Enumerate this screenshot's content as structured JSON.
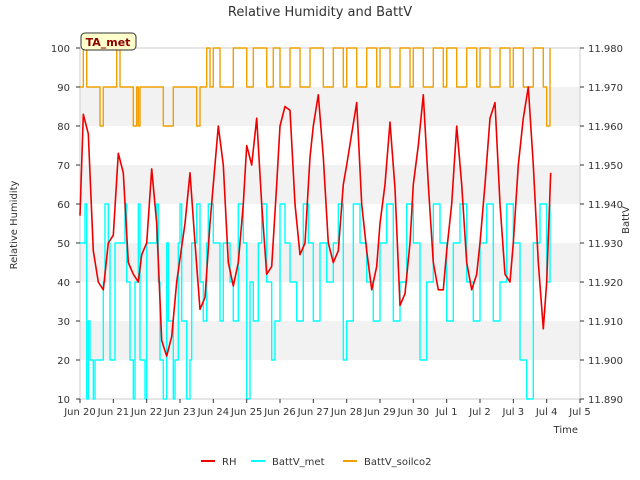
{
  "chart_data": {
    "type": "line",
    "title": "Relative Humidity and BattV",
    "xlabel": "Time",
    "ylabel": "Relative Humidity",
    "y2label": "BattV",
    "badge": "TA_met",
    "xlim": [
      0,
      15
    ],
    "ylim": [
      10,
      100
    ],
    "y2lim": [
      11.89,
      11.98
    ],
    "x_ticks": [
      {
        "pos": 0,
        "label": "Jun 20"
      },
      {
        "pos": 1,
        "label": "Jun 21"
      },
      {
        "pos": 2,
        "label": "Jun 22"
      },
      {
        "pos": 3,
        "label": "Jun 23"
      },
      {
        "pos": 4,
        "label": "Jun 24"
      },
      {
        "pos": 5,
        "label": "Jun 25"
      },
      {
        "pos": 6,
        "label": "Jun 26"
      },
      {
        "pos": 7,
        "label": "Jun 27"
      },
      {
        "pos": 8,
        "label": "Jun 28"
      },
      {
        "pos": 9,
        "label": "Jun 29"
      },
      {
        "pos": 10,
        "label": "Jun 30"
      },
      {
        "pos": 11,
        "label": "Jul 1"
      },
      {
        "pos": 12,
        "label": "Jul 2"
      },
      {
        "pos": 13,
        "label": "Jul 3"
      },
      {
        "pos": 14,
        "label": "Jul 4"
      },
      {
        "pos": 15,
        "label": "Jul 5"
      }
    ],
    "y_ticks": [
      10,
      20,
      30,
      40,
      50,
      60,
      70,
      80,
      90,
      100
    ],
    "y2_ticks": [
      "11.890",
      "11.900",
      "11.910",
      "11.920",
      "11.930",
      "11.940",
      "11.950",
      "11.960",
      "11.970",
      "11.980"
    ],
    "grid": "horizontal bands",
    "legend_position": "bottom",
    "series": [
      {
        "name": "RH",
        "color": "#ee0000",
        "axis": "left",
        "x": [
          0.0,
          0.1,
          0.25,
          0.4,
          0.55,
          0.7,
          0.85,
          1.0,
          1.15,
          1.3,
          1.45,
          1.6,
          1.75,
          1.85,
          2.0,
          2.15,
          2.3,
          2.45,
          2.6,
          2.75,
          2.9,
          3.0,
          3.15,
          3.3,
          3.45,
          3.6,
          3.75,
          3.9,
          4.0,
          4.15,
          4.3,
          4.45,
          4.6,
          4.75,
          4.9,
          5.0,
          5.15,
          5.3,
          5.45,
          5.6,
          5.75,
          5.9,
          6.0,
          6.15,
          6.3,
          6.45,
          6.6,
          6.75,
          6.9,
          7.0,
          7.15,
          7.3,
          7.45,
          7.6,
          7.75,
          7.9,
          8.0,
          8.15,
          8.3,
          8.45,
          8.6,
          8.75,
          8.9,
          9.0,
          9.15,
          9.3,
          9.45,
          9.6,
          9.75,
          9.9,
          10.0,
          10.15,
          10.3,
          10.45,
          10.6,
          10.75,
          10.9,
          11.0,
          11.15,
          11.3,
          11.45,
          11.6,
          11.75,
          11.9,
          12.0,
          12.15,
          12.3,
          12.45,
          12.6,
          12.75,
          12.9,
          13.0,
          13.15,
          13.3,
          13.45,
          13.6,
          13.75,
          13.9,
          14.0,
          14.12
        ],
        "values": [
          57,
          83,
          78,
          48,
          40,
          38,
          50,
          52,
          73,
          68,
          45,
          42,
          40,
          47,
          50,
          69,
          55,
          25,
          21,
          26,
          40,
          46,
          55,
          68,
          50,
          33,
          36,
          55,
          65,
          80,
          70,
          45,
          39,
          45,
          60,
          75,
          70,
          82,
          60,
          42,
          44,
          65,
          80,
          85,
          84,
          60,
          47,
          50,
          72,
          80,
          88,
          72,
          50,
          45,
          48,
          65,
          70,
          78,
          86,
          60,
          48,
          38,
          44,
          55,
          65,
          81,
          64,
          34,
          37,
          50,
          65,
          75,
          88,
          65,
          45,
          38,
          38,
          48,
          60,
          80,
          65,
          45,
          38,
          42,
          50,
          65,
          82,
          86,
          60,
          42,
          40,
          50,
          70,
          82,
          90,
          70,
          45,
          28,
          40,
          68
        ]
      },
      {
        "name": "BattV_met",
        "color": "#00ffff",
        "axis": "right",
        "x": [
          0.0,
          0.15,
          0.2,
          0.25,
          0.3,
          0.4,
          0.45,
          0.7,
          0.75,
          0.85,
          0.9,
          1.0,
          1.05,
          1.35,
          1.4,
          1.5,
          1.6,
          1.65,
          1.75,
          1.8,
          1.95,
          2.0,
          2.3,
          2.35,
          2.4,
          2.5,
          2.6,
          2.65,
          2.8,
          2.85,
          2.95,
          3.0,
          3.05,
          3.2,
          3.3,
          3.35,
          3.5,
          3.6,
          3.7,
          3.8,
          3.85,
          4.0,
          4.2,
          4.3,
          4.5,
          4.6,
          4.75,
          4.9,
          5.0,
          5.1,
          5.2,
          5.35,
          5.45,
          5.6,
          5.75,
          5.85,
          6.0,
          6.15,
          6.3,
          6.5,
          6.7,
          6.85,
          7.0,
          7.2,
          7.4,
          7.6,
          7.75,
          7.9,
          8.0,
          8.2,
          8.4,
          8.6,
          8.8,
          9.0,
          9.2,
          9.4,
          9.6,
          9.8,
          10.0,
          10.2,
          10.4,
          10.6,
          10.8,
          11.0,
          11.2,
          11.4,
          11.6,
          11.8,
          12.0,
          12.2,
          12.4,
          12.6,
          12.8,
          13.0,
          13.2,
          13.4,
          13.6,
          13.8,
          14.0,
          14.1
        ],
        "values": [
          11.93,
          11.94,
          11.89,
          11.91,
          11.9,
          11.89,
          11.9,
          11.92,
          11.94,
          11.93,
          11.9,
          11.9,
          11.93,
          11.94,
          11.92,
          11.9,
          11.89,
          11.92,
          11.94,
          11.9,
          11.89,
          11.93,
          11.94,
          11.92,
          11.9,
          11.89,
          11.93,
          11.91,
          11.89,
          11.9,
          11.93,
          11.94,
          11.91,
          11.89,
          11.9,
          11.93,
          11.94,
          11.92,
          11.91,
          11.93,
          11.94,
          11.93,
          11.91,
          11.93,
          11.92,
          11.91,
          11.94,
          11.93,
          11.89,
          11.92,
          11.91,
          11.93,
          11.94,
          11.92,
          11.9,
          11.91,
          11.94,
          11.93,
          11.92,
          11.91,
          11.94,
          11.93,
          11.91,
          11.93,
          11.92,
          11.93,
          11.94,
          11.9,
          11.91,
          11.94,
          11.93,
          11.92,
          11.91,
          11.93,
          11.94,
          11.91,
          11.92,
          11.94,
          11.93,
          11.9,
          11.92,
          11.94,
          11.93,
          11.91,
          11.93,
          11.94,
          11.92,
          11.91,
          11.93,
          11.94,
          11.91,
          11.92,
          11.94,
          11.93,
          11.9,
          11.89,
          11.93,
          11.94,
          11.92,
          11.94
        ]
      },
      {
        "name": "BattV_soilco2",
        "color": "#f0a000",
        "axis": "right",
        "x": [
          0.0,
          0.1,
          0.2,
          0.3,
          0.6,
          0.7,
          1.0,
          1.1,
          1.2,
          1.3,
          1.6,
          1.7,
          1.75,
          1.8,
          1.9,
          2.0,
          2.5,
          2.8,
          3.0,
          3.1,
          3.5,
          3.6,
          3.8,
          3.9,
          4.0,
          4.2,
          4.4,
          4.6,
          4.8,
          5.0,
          5.2,
          5.4,
          5.6,
          5.8,
          6.0,
          6.3,
          6.6,
          6.9,
          7.0,
          7.3,
          7.6,
          7.9,
          8.0,
          8.3,
          8.6,
          8.9,
          9.0,
          9.3,
          9.6,
          9.9,
          10.0,
          10.3,
          10.6,
          10.9,
          11.0,
          11.3,
          11.6,
          11.9,
          12.0,
          12.3,
          12.6,
          12.9,
          13.0,
          13.3,
          13.6,
          13.9,
          14.0,
          14.1
        ],
        "values": [
          11.97,
          11.98,
          11.97,
          11.97,
          11.96,
          11.97,
          11.97,
          11.98,
          11.97,
          11.97,
          11.96,
          11.97,
          11.96,
          11.97,
          11.97,
          11.97,
          11.96,
          11.97,
          11.97,
          11.97,
          11.96,
          11.97,
          11.98,
          11.97,
          11.98,
          11.97,
          11.97,
          11.98,
          11.98,
          11.97,
          11.98,
          11.98,
          11.97,
          11.98,
          11.97,
          11.98,
          11.97,
          11.98,
          11.98,
          11.97,
          11.98,
          11.97,
          11.98,
          11.97,
          11.98,
          11.97,
          11.98,
          11.97,
          11.98,
          11.97,
          11.98,
          11.97,
          11.98,
          11.97,
          11.98,
          11.97,
          11.98,
          11.97,
          11.98,
          11.97,
          11.98,
          11.97,
          11.98,
          11.97,
          11.98,
          11.97,
          11.96,
          11.98
        ]
      }
    ]
  }
}
